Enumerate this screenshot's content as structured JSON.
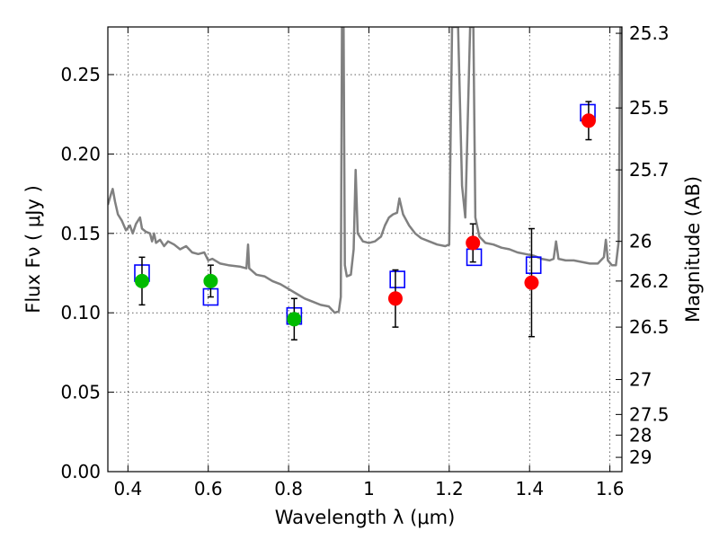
{
  "chart_data": {
    "type": "scatter",
    "title": "",
    "xlabel": "Wavelength  λ (μm)",
    "ylabel": "Flux  Fν  ( μJy )",
    "y2label": "Magnitude (AB)",
    "xlim": [
      0.35,
      1.63
    ],
    "ylim": [
      0.0,
      0.28
    ],
    "grid": true,
    "x_ticks": [
      0.4,
      0.6,
      0.8,
      1.0,
      1.2,
      1.4,
      1.6
    ],
    "x_tick_labels": [
      "0.4",
      "0.6",
      "0.8",
      "1",
      "1.2",
      "1.4",
      "1.6"
    ],
    "y_ticks": [
      0.0,
      0.05,
      0.1,
      0.15,
      0.2,
      0.25
    ],
    "y_tick_labels": [
      "0.00",
      "0.05",
      "0.10",
      "0.15",
      "0.20",
      "0.25"
    ],
    "y2_ticks": [
      {
        "label": "25.3",
        "flux": 0.276
      },
      {
        "label": "25.5",
        "flux": 0.229
      },
      {
        "label": "25.7",
        "flux": 0.19
      },
      {
        "label": "26",
        "flux": 0.145
      },
      {
        "label": "26.2",
        "flux": 0.12
      },
      {
        "label": "26.5",
        "flux": 0.091
      },
      {
        "label": "27",
        "flux": 0.058
      },
      {
        "label": "27.5",
        "flux": 0.036
      },
      {
        "label": "28",
        "flux": 0.023
      },
      {
        "label": "29",
        "flux": 0.009
      }
    ],
    "series": [
      {
        "marker": "square-open",
        "color": "#0000ff",
        "points": [
          {
            "x": 0.435,
            "y": 0.125
          },
          {
            "x": 0.606,
            "y": 0.11
          },
          {
            "x": 0.814,
            "y": 0.098
          },
          {
            "x": 1.071,
            "y": 0.121
          },
          {
            "x": 1.262,
            "y": 0.135
          },
          {
            "x": 1.41,
            "y": 0.13
          },
          {
            "x": 1.545,
            "y": 0.226
          }
        ]
      },
      {
        "marker": "circle",
        "color": "#00bb00",
        "points": [
          {
            "x": 0.435,
            "y": 0.12,
            "err": 0.015
          },
          {
            "x": 0.606,
            "y": 0.12,
            "err": 0.01
          },
          {
            "x": 0.814,
            "y": 0.096,
            "err": 0.013
          }
        ]
      },
      {
        "marker": "circle",
        "color": "#ff0000",
        "points": [
          {
            "x": 1.066,
            "y": 0.109,
            "err": 0.018
          },
          {
            "x": 1.259,
            "y": 0.144,
            "err": 0.012
          },
          {
            "x": 1.405,
            "y": 0.119,
            "err": 0.034
          },
          {
            "x": 1.547,
            "y": 0.221,
            "err": 0.012
          }
        ]
      },
      {
        "type": "line",
        "color": "#808080",
        "points": [
          [
            0.35,
            0.168
          ],
          [
            0.358,
            0.175
          ],
          [
            0.362,
            0.178
          ],
          [
            0.368,
            0.17
          ],
          [
            0.375,
            0.162
          ],
          [
            0.385,
            0.158
          ],
          [
            0.395,
            0.152
          ],
          [
            0.405,
            0.155
          ],
          [
            0.412,
            0.15
          ],
          [
            0.42,
            0.156
          ],
          [
            0.425,
            0.158
          ],
          [
            0.43,
            0.16
          ],
          [
            0.435,
            0.153
          ],
          [
            0.445,
            0.151
          ],
          [
            0.455,
            0.15
          ],
          [
            0.46,
            0.145
          ],
          [
            0.465,
            0.15
          ],
          [
            0.47,
            0.144
          ],
          [
            0.48,
            0.146
          ],
          [
            0.49,
            0.142
          ],
          [
            0.5,
            0.145
          ],
          [
            0.515,
            0.143
          ],
          [
            0.53,
            0.14
          ],
          [
            0.545,
            0.142
          ],
          [
            0.56,
            0.138
          ],
          [
            0.575,
            0.137
          ],
          [
            0.59,
            0.138
          ],
          [
            0.6,
            0.133
          ],
          [
            0.61,
            0.134
          ],
          [
            0.63,
            0.131
          ],
          [
            0.65,
            0.13
          ],
          [
            0.68,
            0.129
          ],
          [
            0.695,
            0.128
          ],
          [
            0.699,
            0.143
          ],
          [
            0.702,
            0.128
          ],
          [
            0.72,
            0.124
          ],
          [
            0.74,
            0.123
          ],
          [
            0.76,
            0.12
          ],
          [
            0.78,
            0.118
          ],
          [
            0.8,
            0.115
          ],
          [
            0.82,
            0.112
          ],
          [
            0.84,
            0.109
          ],
          [
            0.86,
            0.107
          ],
          [
            0.88,
            0.105
          ],
          [
            0.9,
            0.104
          ],
          [
            0.915,
            0.1
          ],
          [
            0.925,
            0.101
          ],
          [
            0.93,
            0.11
          ],
          [
            0.933,
            0.28
          ],
          [
            0.937,
            0.28
          ],
          [
            0.94,
            0.13
          ],
          [
            0.945,
            0.123
          ],
          [
            0.955,
            0.124
          ],
          [
            0.962,
            0.14
          ],
          [
            0.967,
            0.19
          ],
          [
            0.972,
            0.15
          ],
          [
            0.985,
            0.145
          ],
          [
            1.0,
            0.144
          ],
          [
            1.015,
            0.145
          ],
          [
            1.03,
            0.148
          ],
          [
            1.04,
            0.155
          ],
          [
            1.05,
            0.16
          ],
          [
            1.06,
            0.162
          ],
          [
            1.07,
            0.163
          ],
          [
            1.076,
            0.172
          ],
          [
            1.085,
            0.162
          ],
          [
            1.1,
            0.155
          ],
          [
            1.115,
            0.15
          ],
          [
            1.13,
            0.147
          ],
          [
            1.15,
            0.145
          ],
          [
            1.17,
            0.143
          ],
          [
            1.19,
            0.142
          ],
          [
            1.2,
            0.143
          ],
          [
            1.207,
            0.28
          ],
          [
            1.222,
            0.28
          ],
          [
            1.232,
            0.18
          ],
          [
            1.24,
            0.16
          ],
          [
            1.252,
            0.28
          ],
          [
            1.26,
            0.28
          ],
          [
            1.265,
            0.16
          ],
          [
            1.275,
            0.148
          ],
          [
            1.29,
            0.144
          ],
          [
            1.31,
            0.143
          ],
          [
            1.33,
            0.141
          ],
          [
            1.35,
            0.14
          ],
          [
            1.37,
            0.138
          ],
          [
            1.39,
            0.137
          ],
          [
            1.41,
            0.136
          ],
          [
            1.43,
            0.134
          ],
          [
            1.45,
            0.133
          ],
          [
            1.46,
            0.134
          ],
          [
            1.466,
            0.145
          ],
          [
            1.472,
            0.134
          ],
          [
            1.49,
            0.133
          ],
          [
            1.51,
            0.133
          ],
          [
            1.53,
            0.132
          ],
          [
            1.55,
            0.131
          ],
          [
            1.57,
            0.131
          ],
          [
            1.585,
            0.135
          ],
          [
            1.59,
            0.146
          ],
          [
            1.595,
            0.133
          ],
          [
            1.605,
            0.13
          ],
          [
            1.615,
            0.13
          ],
          [
            1.622,
            0.145
          ],
          [
            1.626,
            0.28
          ]
        ]
      }
    ]
  }
}
